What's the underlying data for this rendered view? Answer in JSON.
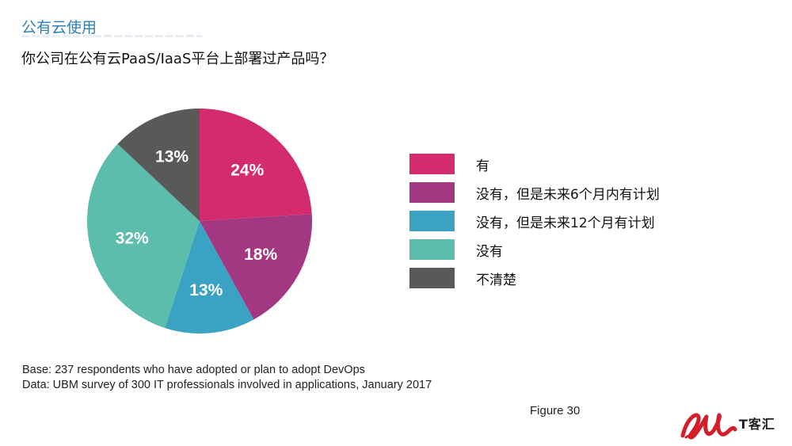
{
  "header": {
    "section_title": "公有云使用",
    "question": "你公司在公有云PaaS/IaaS平台上部署过产品吗？"
  },
  "chart_data": {
    "type": "pie",
    "categories": [
      "有",
      "没有，但是未来6个月内有计划",
      "没有，但是未来12个月有计划",
      "没有",
      "不清楚"
    ],
    "values": [
      24,
      18,
      13,
      32,
      13
    ],
    "value_labels": [
      "24%",
      "18%",
      "13%",
      "32%",
      "13%"
    ],
    "colors": [
      "#d42b6f",
      "#a33781",
      "#3aa2c3",
      "#5cbdac",
      "#595959"
    ],
    "legend_position": "right",
    "start": "12 o'clock",
    "direction": "clockwise"
  },
  "notes": {
    "base": "Base: 237 respondents who have adopted or plan to adopt DevOps",
    "data": "Data: UBM survey of 300 IT professionals involved in applications, January 2017"
  },
  "figure_label": "Figure 30",
  "logo": {
    "text": "T客汇",
    "colors": {
      "primary": "#d21f2a"
    }
  }
}
